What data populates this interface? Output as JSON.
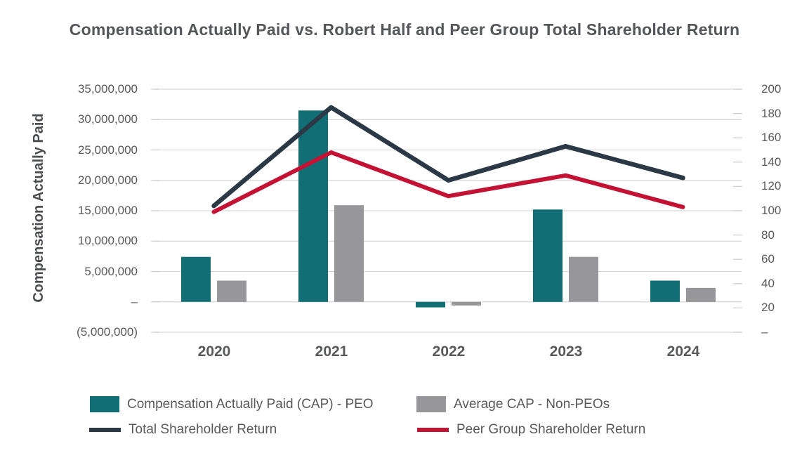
{
  "title": "Compensation Actually Paid vs. Robert Half and Peer Group Total Shareholder Return",
  "chart_data": {
    "type": "combo-bar-line",
    "categories": [
      "2020",
      "2021",
      "2022",
      "2023",
      "2024"
    ],
    "left_axis": {
      "title": "Compensation Actually Paid",
      "min": -5000000,
      "max": 35000000,
      "tick_values": [
        35000000,
        30000000,
        25000000,
        20000000,
        15000000,
        10000000,
        5000000,
        0,
        -5000000
      ],
      "tick_labels": [
        "35,000,000",
        "30,000,000",
        "25,000,000",
        "20,000,000",
        "15,000,000",
        "10,000,000",
        "5,000,000",
        "–",
        "(5,000,000)"
      ],
      "gridlines": true
    },
    "right_axis": {
      "min": 0,
      "max": 200,
      "tick_values": [
        200,
        180,
        160,
        140,
        120,
        100,
        80,
        60,
        40,
        20,
        0
      ],
      "tick_labels": [
        "200",
        "180",
        "160",
        "140",
        "120",
        "100",
        "80",
        "60",
        "40",
        "20",
        "–"
      ]
    },
    "bar_series": [
      {
        "name": "Compensation Actually Paid (CAP) - PEO",
        "axis": "left",
        "color": "#116e74",
        "values": [
          7400000,
          31500000,
          -900000,
          15200000,
          3500000
        ]
      },
      {
        "name": "Average CAP - Non-PEOs",
        "axis": "left",
        "color": "#97969a",
        "values": [
          3500000,
          15900000,
          -600000,
          7400000,
          2300000
        ]
      }
    ],
    "line_series": [
      {
        "name": "Total Shareholder Return",
        "axis": "right",
        "color": "#2b3845",
        "values": [
          104,
          185,
          125,
          153,
          127
        ]
      },
      {
        "name": "Peer Group Shareholder Return",
        "axis": "right",
        "color": "#c41235",
        "values": [
          99,
          148,
          112,
          129,
          103
        ]
      }
    ],
    "legend_position": "bottom",
    "gridline_color": "#d9d9d9",
    "tick_mark_color": "#cfcfcf"
  }
}
